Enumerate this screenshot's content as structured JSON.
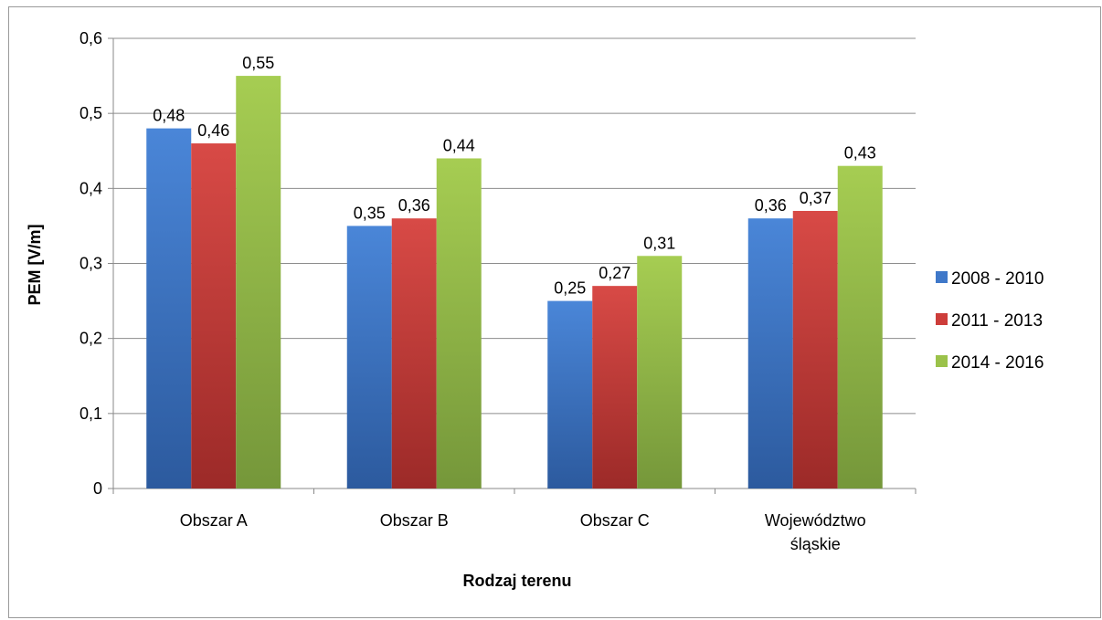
{
  "chart_data": {
    "type": "bar",
    "title": "",
    "xlabel": "Rodzaj terenu",
    "ylabel": "PEM [V/m]",
    "ylim": [
      0,
      0.6
    ],
    "yticks": [
      "0",
      "0,1",
      "0,2",
      "0,3",
      "0,4",
      "0,5",
      "0,6"
    ],
    "categories": [
      [
        "Obszar A"
      ],
      [
        "Obszar B"
      ],
      [
        "Obszar C"
      ],
      [
        "Województwo",
        "śląskie"
      ]
    ],
    "series": [
      {
        "name": "2008 - 2010",
        "color": "#3f78c9",
        "values": [
          0.48,
          0.35,
          0.25,
          0.36
        ],
        "labels": [
          "0,48",
          "0,35",
          "0,25",
          "0,36"
        ]
      },
      {
        "name": "2011 - 2013",
        "color": "#cd3d3a",
        "values": [
          0.46,
          0.36,
          0.27,
          0.37
        ],
        "labels": [
          "0,46",
          "0,36",
          "0,27",
          "0,37"
        ]
      },
      {
        "name": "2014 - 2016",
        "color": "#9bc24a",
        "values": [
          0.55,
          0.44,
          0.31,
          0.43
        ],
        "labels": [
          "0,55",
          "0,44",
          "0,31",
          "0,43"
        ]
      }
    ],
    "grid": true,
    "legend": "right"
  }
}
